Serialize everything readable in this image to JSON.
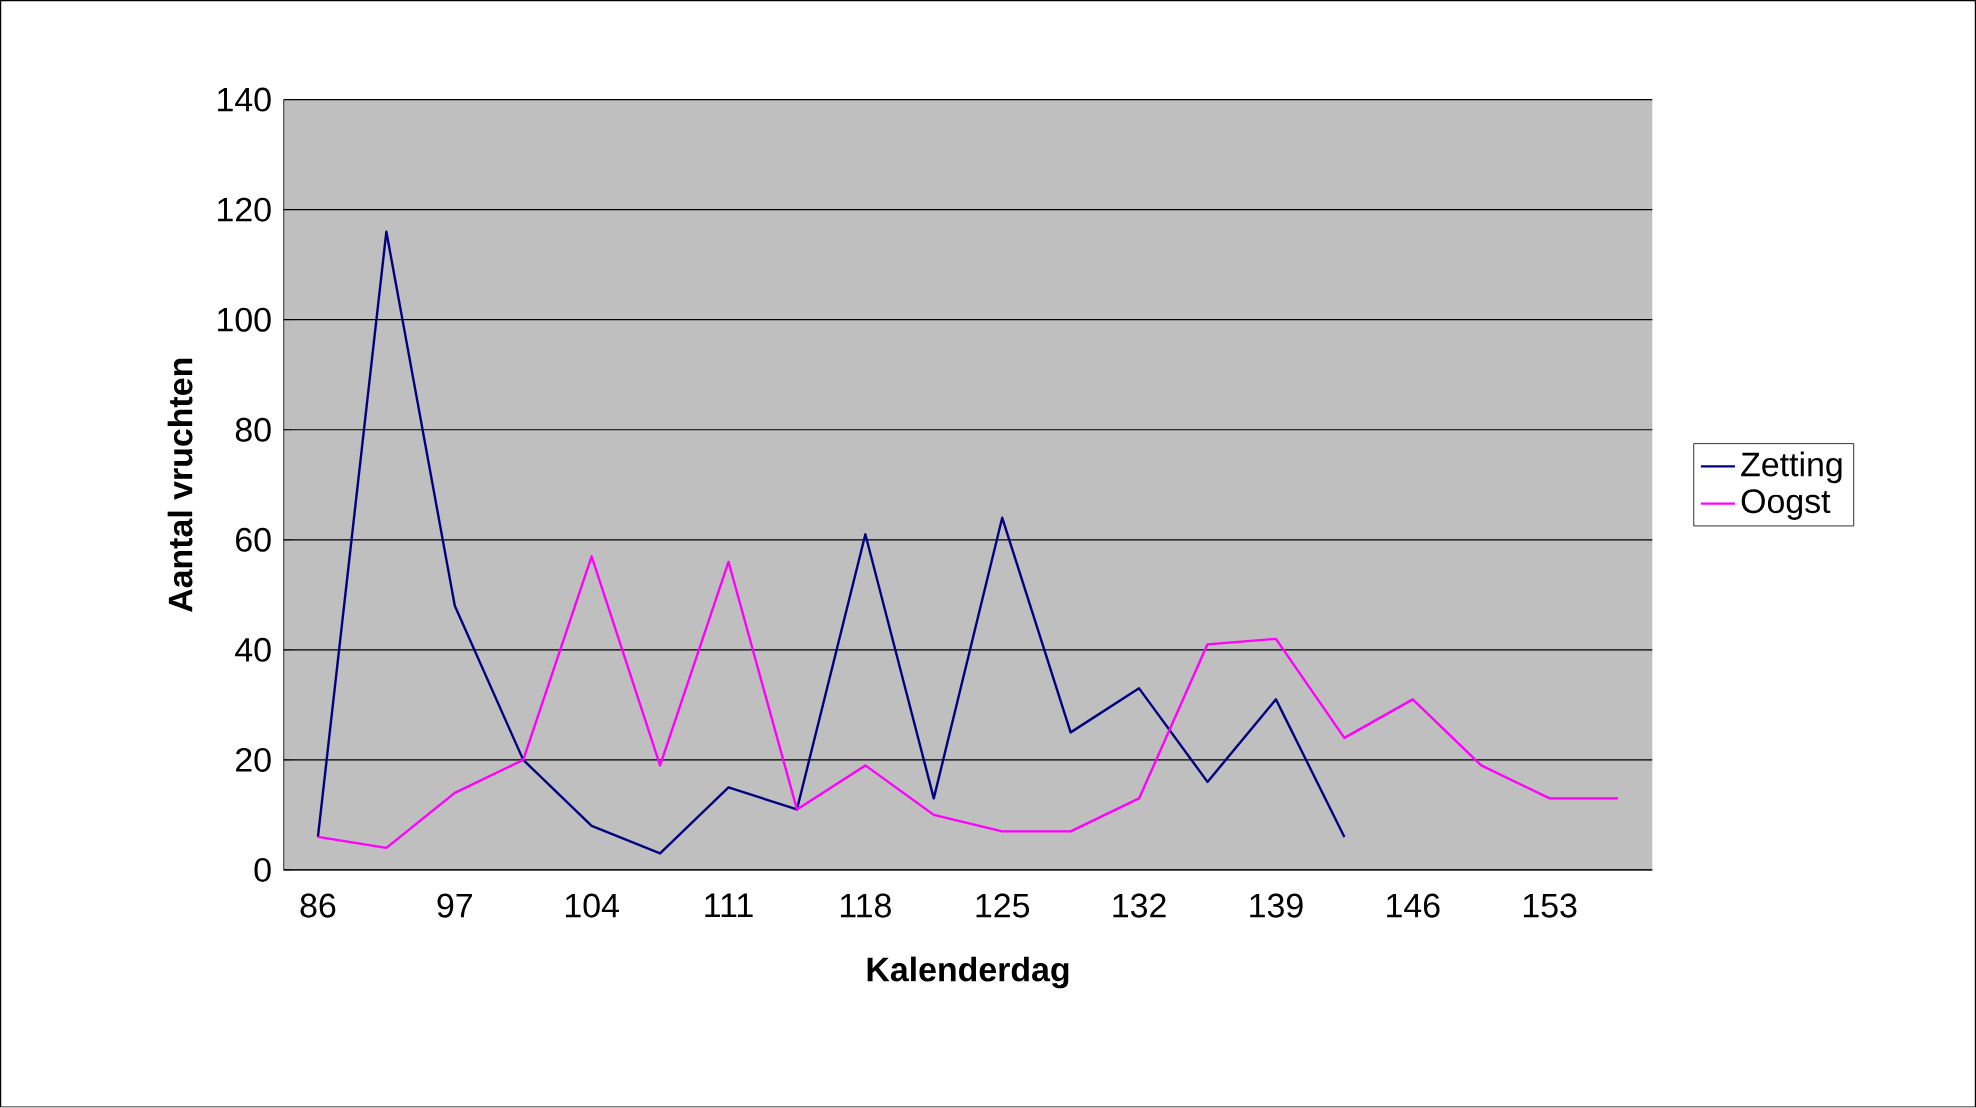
{
  "chart_data": {
    "type": "line",
    "xlabel": "Kalenderdag",
    "ylabel": "Aantal vruchten",
    "categories": [
      "86",
      null,
      "97",
      null,
      "104",
      null,
      "111",
      null,
      "118",
      null,
      "125",
      null,
      "132",
      null,
      "139",
      null,
      "146",
      null,
      "153",
      null
    ],
    "series": [
      {
        "name": "Zetting",
        "color": "#000080",
        "values": [
          6,
          116,
          48,
          20,
          8,
          3,
          15,
          11,
          61,
          13,
          64,
          25,
          33,
          16,
          31,
          6,
          null,
          null,
          null,
          null
        ]
      },
      {
        "name": "Oogst",
        "color": "#ff00ff",
        "values": [
          6,
          4,
          14,
          20,
          57,
          19,
          56,
          11,
          19,
          10,
          7,
          7,
          13,
          41,
          42,
          24,
          31,
          19,
          13,
          13
        ]
      }
    ],
    "ylim": [
      0,
      140
    ],
    "yticks": [
      0,
      20,
      40,
      60,
      80,
      100,
      120,
      140
    ],
    "grid": "y",
    "legend": "right",
    "marker": "none",
    "line_style": "solid"
  }
}
